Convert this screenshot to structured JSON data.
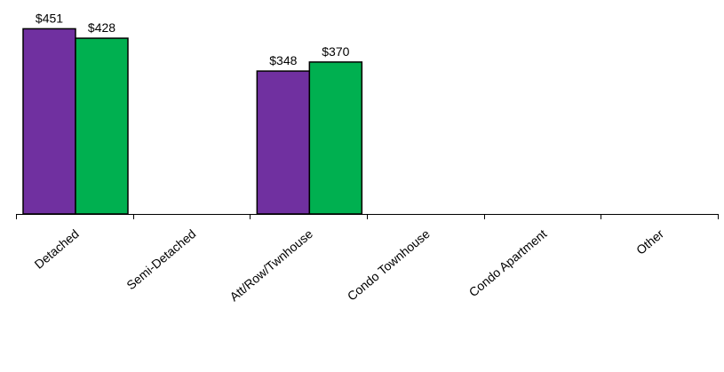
{
  "chart_data": {
    "type": "bar",
    "categories": [
      "Detached",
      "Semi-Detached",
      "Att/Row/Twnhouse",
      "Condo Townhouse",
      "Condo Apartment",
      "Other"
    ],
    "series": [
      {
        "values": [
          451,
          null,
          348,
          null,
          null,
          null
        ],
        "color": "#7030a0"
      },
      {
        "values": [
          428,
          null,
          370,
          null,
          null,
          null
        ],
        "color": "#00b050"
      }
    ],
    "data_labels": [
      [
        "$451",
        null,
        "$348",
        null,
        null,
        null
      ],
      [
        "$428",
        null,
        "$370",
        null,
        null,
        null
      ]
    ],
    "ylim": [
      0,
      480
    ],
    "grid": false,
    "legend": "none",
    "title": "",
    "xlabel": "",
    "ylabel": ""
  }
}
